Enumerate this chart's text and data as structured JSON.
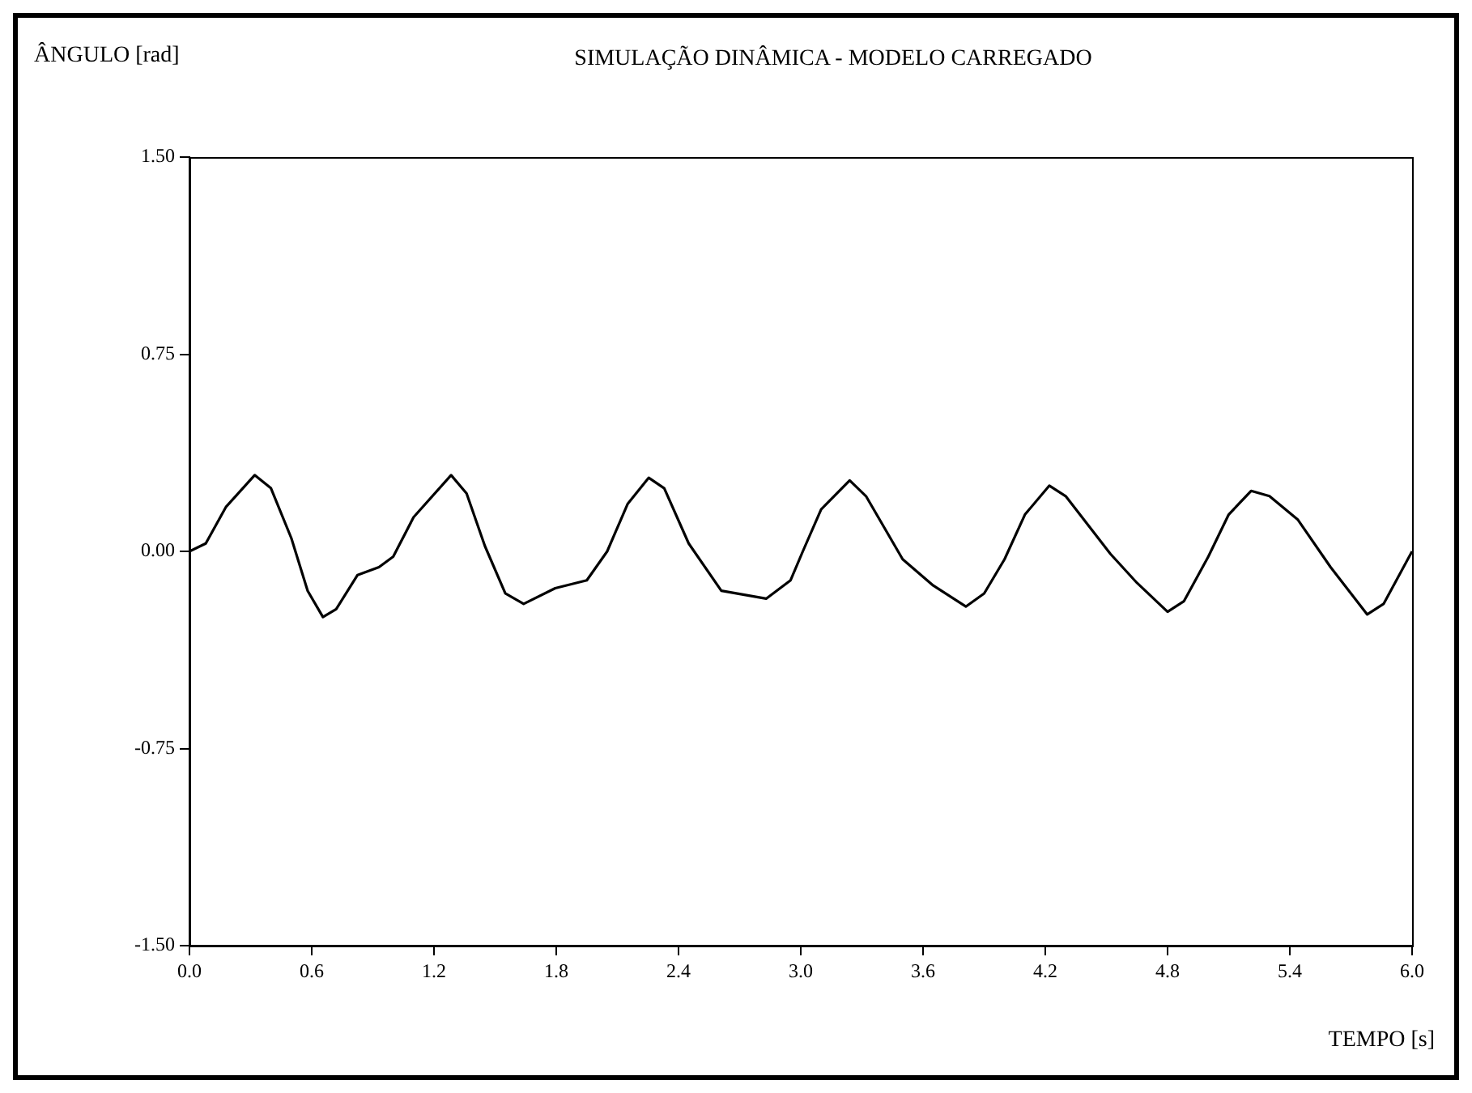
{
  "chart_data": {
    "type": "line",
    "title": "SIMULAÇÃO DINÂMICA - MODELO CARREGADO",
    "xlabel": "TEMPO [s]",
    "ylabel": "ÂNGULO [rad]",
    "x": [
      0,
      0.08,
      0.18,
      0.32,
      0.4,
      0.5,
      0.58,
      0.655,
      0.72,
      0.825,
      0.93,
      1.0,
      1.1,
      1.284,
      1.36,
      1.45,
      1.55,
      1.64,
      1.795,
      1.95,
      2.05,
      2.15,
      2.254,
      2.33,
      2.45,
      2.61,
      2.83,
      2.95,
      3.01,
      3.1,
      3.24,
      3.32,
      3.5,
      3.65,
      3.81,
      3.9,
      4.0,
      4.1,
      4.22,
      4.3,
      4.52,
      4.65,
      4.8,
      4.88,
      5.0,
      5.1,
      5.21,
      5.3,
      5.44,
      5.6,
      5.78,
      5.86,
      6.0
    ],
    "series": [
      {
        "color": "#000000",
        "values": [
          0,
          0.03,
          0.17,
          0.29,
          0.24,
          0.05,
          -0.15,
          -0.25,
          -0.22,
          -0.09,
          -0.06,
          -0.02,
          0.13,
          0.29,
          0.22,
          0.02,
          -0.16,
          -0.2,
          -0.14,
          -0.11,
          0.0,
          0.18,
          0.28,
          0.24,
          0.03,
          -0.15,
          -0.18,
          -0.11,
          0,
          0.16,
          0.27,
          0.21,
          -0.03,
          -0.13,
          -0.21,
          -0.16,
          -0.03,
          0.14,
          0.25,
          0.21,
          -0.01,
          -0.12,
          -0.23,
          -0.19,
          -0.02,
          0.14,
          0.23,
          0.21,
          0.12,
          -0.06,
          -0.24,
          -0.2,
          0.0
        ]
      }
    ],
    "xlim": [
      0,
      6
    ],
    "ylim": [
      -1.5,
      1.5
    ],
    "xticks": [
      {
        "value": 0,
        "label": "0.0"
      },
      {
        "value": 0.6,
        "label": "0.6"
      },
      {
        "value": 1.2,
        "label": "1.2"
      },
      {
        "value": 1.8,
        "label": "1.8"
      },
      {
        "value": 2.4,
        "label": "2.4"
      },
      {
        "value": 3,
        "label": "3.0"
      },
      {
        "value": 3.6,
        "label": "3.6"
      },
      {
        "value": 4.2,
        "label": "4.2"
      },
      {
        "value": 4.8,
        "label": "4.8"
      },
      {
        "value": 5.4,
        "label": "5.4"
      },
      {
        "value": 6,
        "label": "6.0"
      }
    ],
    "yticks": [
      {
        "value": -1.5,
        "label": "-1.50"
      },
      {
        "value": -0.75,
        "label": "-0.75"
      },
      {
        "value": 0,
        "label": "0.00"
      },
      {
        "value": 0.75,
        "label": "0.75"
      },
      {
        "value": 1.5,
        "label": "1.50"
      }
    ],
    "grid": false,
    "legend": false,
    "marker": "none",
    "line_style": "solid"
  }
}
